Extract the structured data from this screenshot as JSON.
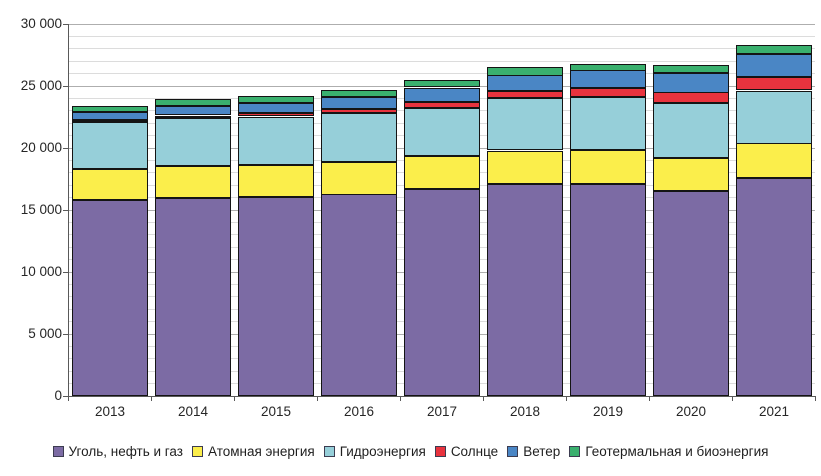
{
  "chart_data": {
    "type": "bar",
    "stacked": true,
    "title": "",
    "xlabel": "",
    "ylabel": "",
    "categories": [
      "2013",
      "2014",
      "2015",
      "2016",
      "2017",
      "2018",
      "2019",
      "2020",
      "2021"
    ],
    "series": [
      {
        "name": "Уголь, нефть и газ",
        "color": "#7C6BA4",
        "values": [
          15800,
          16000,
          16050,
          16250,
          16700,
          17100,
          17100,
          16500,
          17550
        ]
      },
      {
        "name": "Атомная энергия",
        "color": "#FBEE4B",
        "values": [
          2500,
          2550,
          2600,
          2650,
          2650,
          2700,
          2750,
          2700,
          2800
        ]
      },
      {
        "name": "Гидроэнергия",
        "color": "#96CFD9",
        "values": [
          3800,
          3900,
          3900,
          3950,
          3900,
          4200,
          4250,
          4400,
          4300
        ]
      },
      {
        "name": "Солнце",
        "color": "#E8333E",
        "values": [
          150,
          200,
          250,
          330,
          500,
          570,
          700,
          850,
          1050
        ]
      },
      {
        "name": "Ветер",
        "color": "#4A86C5",
        "values": [
          650,
          750,
          800,
          950,
          1130,
          1270,
          1430,
          1600,
          1850
        ]
      },
      {
        "name": "Геотермальная и биоэнергия",
        "color": "#3AB06E",
        "values": [
          500,
          550,
          550,
          530,
          600,
          700,
          600,
          620,
          700
        ]
      }
    ],
    "ylim": [
      0,
      30000
    ],
    "y_major_step": 5000,
    "y_minor_step": 1000,
    "y_tick_labels": [
      "0",
      "5 000",
      "10 000",
      "15 000",
      "20 000",
      "25 000",
      "30 000"
    ],
    "grid": true,
    "legend_position": "bottom",
    "colors": {
      "grid_minor": "#dcdcdc",
      "grid_major": "#aeaeae",
      "axis": "#595959",
      "bar_outline": "#141414",
      "text": "#262626"
    }
  }
}
